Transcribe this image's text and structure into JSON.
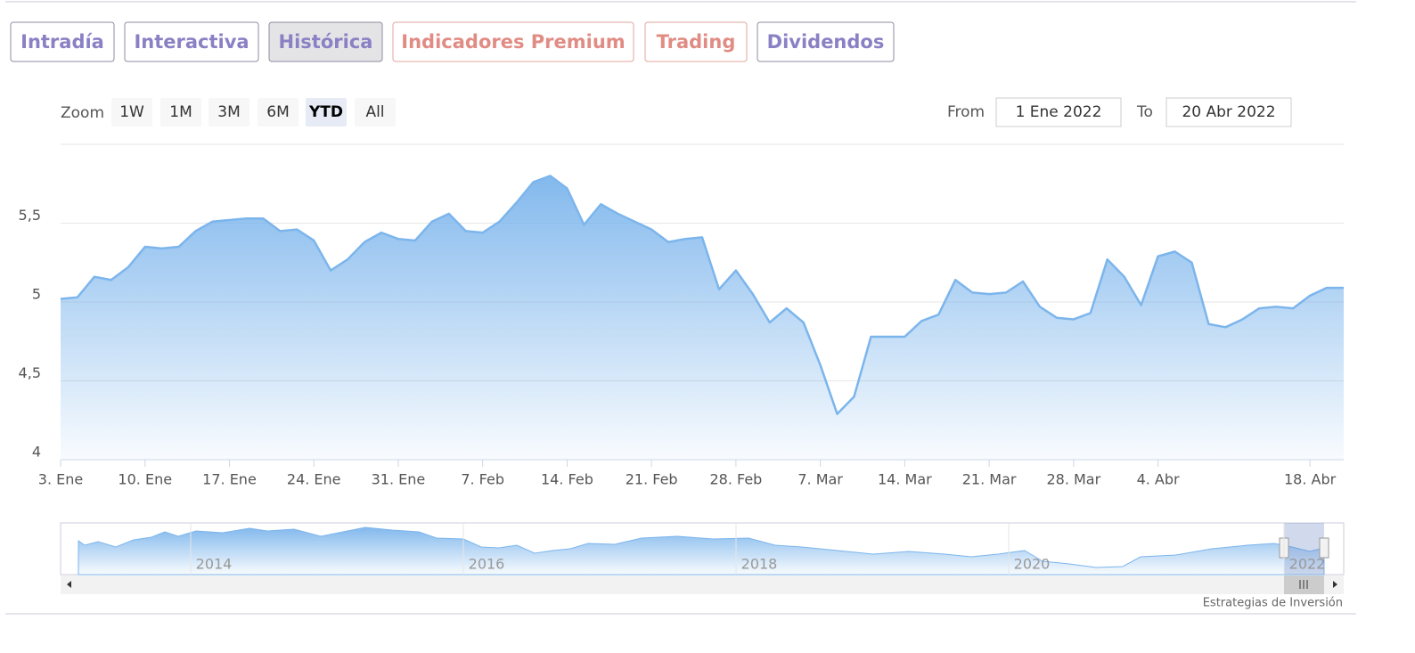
{
  "tabs": [
    "Intradía",
    "Interactiva",
    "Histórica",
    "Indicadores Premium",
    "Trading",
    "Dividendos"
  ],
  "zoom": {
    "label": "Zoom",
    "buttons": [
      "1W",
      "1M",
      "3M",
      "6M",
      "YTD",
      "All"
    ]
  },
  "range": {
    "from_label": "From",
    "from": "1 Ene 2022",
    "to_label": "To",
    "to": "20 Abr 2022"
  },
  "chart_data": {
    "type": "area",
    "color": "#7cb5ec",
    "grid": true,
    "categories": [
      "3. Ene",
      null,
      null,
      null,
      null,
      "10. Ene",
      null,
      null,
      null,
      null,
      "17. Ene",
      null,
      null,
      null,
      null,
      "24. Ene",
      null,
      null,
      null,
      null,
      "31. Ene",
      null,
      null,
      null,
      null,
      "7. Feb",
      null,
      null,
      null,
      null,
      "14. Feb",
      null,
      null,
      null,
      null,
      "21. Feb",
      null,
      null,
      null,
      null,
      "28. Feb",
      null,
      null,
      null,
      null,
      "7. Mar",
      null,
      null,
      null,
      null,
      "14. Mar",
      null,
      null,
      null,
      null,
      "21. Mar",
      null,
      null,
      null,
      null,
      "28. Mar",
      null,
      null,
      null,
      null,
      "4. Abr",
      null,
      null,
      null,
      null,
      null,
      null,
      null,
      null,
      "18. Abr",
      null,
      null
    ],
    "values": [
      5.02,
      5.03,
      5.16,
      5.14,
      5.22,
      5.35,
      5.34,
      5.35,
      5.45,
      5.51,
      5.52,
      5.53,
      5.53,
      5.45,
      5.46,
      5.39,
      5.2,
      5.27,
      5.38,
      5.44,
      5.4,
      5.39,
      5.51,
      5.56,
      5.45,
      5.44,
      5.51,
      5.63,
      5.76,
      5.8,
      5.72,
      5.49,
      5.62,
      5.56,
      5.51,
      5.46,
      5.38,
      5.4,
      5.41,
      5.08,
      5.2,
      5.05,
      4.87,
      4.96,
      4.87,
      4.6,
      4.29,
      4.4,
      4.78,
      4.78,
      4.78,
      4.88,
      4.92,
      5.14,
      5.06,
      5.05,
      5.06,
      5.13,
      4.97,
      4.9,
      4.89,
      4.93,
      5.27,
      5.16,
      4.98,
      5.29,
      5.32,
      5.25,
      4.86,
      4.84,
      4.89,
      4.96,
      4.97,
      4.96,
      5.04,
      5.09,
      5.09
    ],
    "ylim": [
      4,
      6
    ],
    "yticks": [
      4,
      {
        "value": 4.5,
        "label": "4,5"
      },
      5,
      {
        "value": 5.5,
        "label": "5,5"
      }
    ]
  },
  "navigator": {
    "years": [
      "2014",
      "2016",
      "2018",
      "2020",
      "2022"
    ]
  },
  "credit": "Estrategias de Inversión"
}
